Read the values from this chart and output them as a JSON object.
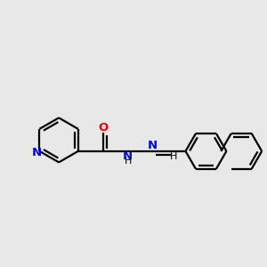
{
  "background_color": "#e8e8e8",
  "bond_color": "#000000",
  "N_color": "#0000ee",
  "O_color": "#ee0000",
  "line_width": 1.6,
  "font_size": 9.5,
  "figsize": [
    3.0,
    3.0
  ],
  "dpi": 100,
  "xlim": [
    0,
    10
  ],
  "ylim": [
    0,
    10
  ]
}
